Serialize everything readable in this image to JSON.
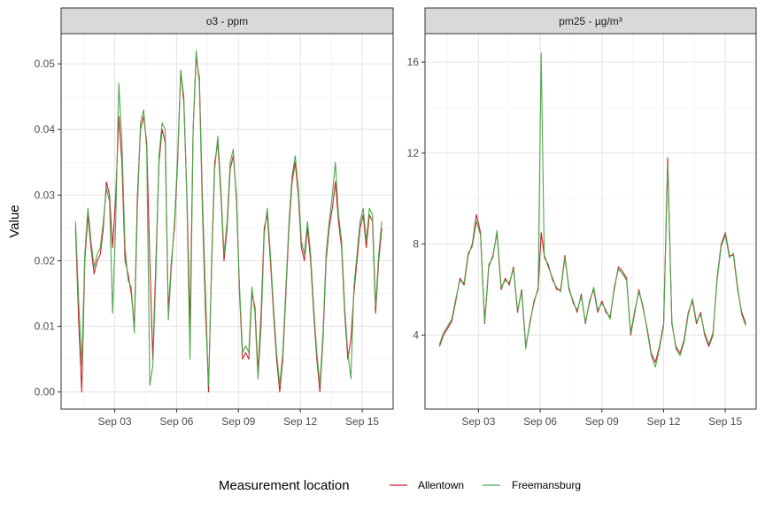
{
  "chart_data": {
    "type": "line",
    "ylabel": "Value",
    "xlabel": "",
    "grid": true,
    "legend": {
      "title": "Measurement location",
      "position": "bottom",
      "entries": [
        {
          "name": "Allentown",
          "color": "#c8232b"
        },
        {
          "name": "Freemansburg",
          "color": "#4da64a"
        }
      ]
    },
    "x_ticks": [
      "Sep 03",
      "Sep 06",
      "Sep 09",
      "Sep 12",
      "Sep 15"
    ],
    "x_tick_days": [
      3,
      6,
      9,
      12,
      15
    ],
    "xlim_days": [
      0.4,
      16.5
    ],
    "panels": [
      {
        "title": "o3 - ppm",
        "ylim": [
          -0.0026,
          0.0546
        ],
        "y_ticks": [
          0.0,
          0.01,
          0.02,
          0.03,
          0.04,
          0.05
        ],
        "y_tick_labels": [
          "0.00",
          "0.01",
          "0.02",
          "0.03",
          "0.04",
          "0.05"
        ],
        "series": [
          {
            "name": "Allentown",
            "x": [
              1.1,
              1.25,
              1.4,
              1.55,
              1.7,
              1.85,
              2.0,
              2.15,
              2.3,
              2.45,
              2.6,
              2.75,
              2.9,
              3.05,
              3.2,
              3.35,
              3.5,
              3.65,
              3.8,
              3.95,
              4.1,
              4.25,
              4.4,
              4.55,
              4.7,
              4.85,
              5.0,
              5.15,
              5.3,
              5.45,
              5.6,
              5.75,
              5.9,
              6.05,
              6.2,
              6.35,
              6.5,
              6.65,
              6.8,
              6.95,
              7.1,
              7.25,
              7.4,
              7.55,
              7.7,
              7.85,
              8.0,
              8.15,
              8.3,
              8.45,
              8.6,
              8.75,
              8.9,
              9.05,
              9.2,
              9.35,
              9.5,
              9.65,
              9.8,
              9.95,
              10.1,
              10.25,
              10.4,
              10.55,
              10.7,
              10.85,
              11.0,
              11.15,
              11.3,
              11.45,
              11.6,
              11.75,
              11.9,
              12.05,
              12.2,
              12.35,
              12.5,
              12.65,
              12.8,
              12.95,
              13.1,
              13.25,
              13.4,
              13.55,
              13.7,
              13.85,
              14.0,
              14.15,
              14.3,
              14.45,
              14.6,
              14.75,
              14.9,
              15.05,
              15.2,
              15.35,
              15.5,
              15.65,
              15.8,
              15.95
            ],
            "y": [
              0.025,
              0.011,
              0.0,
              0.02,
              0.027,
              0.022,
              0.018,
              0.02,
              0.021,
              0.025,
              0.032,
              0.03,
              0.022,
              0.03,
              0.042,
              0.035,
              0.02,
              0.018,
              0.015,
              0.01,
              0.03,
              0.04,
              0.042,
              0.038,
              0.02,
              0.005,
              0.02,
              0.035,
              0.04,
              0.038,
              0.012,
              0.02,
              0.025,
              0.035,
              0.049,
              0.044,
              0.03,
              0.01,
              0.04,
              0.051,
              0.048,
              0.03,
              0.015,
              0.0,
              0.02,
              0.035,
              0.038,
              0.03,
              0.02,
              0.025,
              0.034,
              0.036,
              0.03,
              0.015,
              0.005,
              0.006,
              0.005,
              0.015,
              0.013,
              0.003,
              0.012,
              0.025,
              0.027,
              0.02,
              0.012,
              0.005,
              0.0,
              0.005,
              0.015,
              0.025,
              0.032,
              0.035,
              0.03,
              0.022,
              0.02,
              0.025,
              0.02,
              0.012,
              0.005,
              0.0,
              0.008,
              0.02,
              0.025,
              0.028,
              0.032,
              0.026,
              0.022,
              0.012,
              0.005,
              0.008,
              0.015,
              0.02,
              0.025,
              0.027,
              0.022,
              0.027,
              0.026,
              0.012,
              0.02,
              0.025
            ]
          },
          {
            "name": "Freemansburg",
            "x": [
              1.1,
              1.25,
              1.4,
              1.55,
              1.7,
              1.85,
              2.0,
              2.15,
              2.3,
              2.45,
              2.6,
              2.75,
              2.9,
              3.05,
              3.2,
              3.35,
              3.5,
              3.65,
              3.8,
              3.95,
              4.1,
              4.25,
              4.4,
              4.55,
              4.7,
              4.85,
              5.0,
              5.15,
              5.3,
              5.45,
              5.6,
              5.75,
              5.9,
              6.05,
              6.2,
              6.35,
              6.5,
              6.65,
              6.8,
              6.95,
              7.1,
              7.25,
              7.4,
              7.55,
              7.7,
              7.85,
              8.0,
              8.15,
              8.3,
              8.45,
              8.6,
              8.75,
              8.9,
              9.05,
              9.2,
              9.35,
              9.5,
              9.65,
              9.8,
              9.95,
              10.1,
              10.25,
              10.4,
              10.55,
              10.7,
              10.85,
              11.0,
              11.15,
              11.3,
              11.45,
              11.6,
              11.75,
              11.9,
              12.05,
              12.2,
              12.35,
              12.5,
              12.65,
              12.8,
              12.95,
              13.1,
              13.25,
              13.4,
              13.55,
              13.7,
              13.85,
              14.0,
              14.15,
              14.3,
              14.45,
              14.6,
              14.75,
              14.9,
              15.05,
              15.2,
              15.35,
              15.5,
              15.65,
              15.8,
              15.95
            ],
            "y": [
              0.026,
              0.014,
              0.004,
              0.021,
              0.028,
              0.023,
              0.019,
              0.021,
              0.022,
              0.026,
              0.031,
              0.029,
              0.012,
              0.026,
              0.047,
              0.038,
              0.022,
              0.017,
              0.016,
              0.009,
              0.028,
              0.041,
              0.043,
              0.037,
              0.001,
              0.004,
              0.018,
              0.036,
              0.041,
              0.04,
              0.011,
              0.019,
              0.026,
              0.036,
              0.049,
              0.045,
              0.029,
              0.005,
              0.04,
              0.052,
              0.047,
              0.028,
              0.012,
              0.001,
              0.019,
              0.034,
              0.039,
              0.031,
              0.021,
              0.026,
              0.035,
              0.037,
              0.029,
              0.016,
              0.006,
              0.007,
              0.006,
              0.016,
              0.012,
              0.002,
              0.01,
              0.024,
              0.028,
              0.021,
              0.013,
              0.006,
              0.001,
              0.006,
              0.016,
              0.026,
              0.033,
              0.036,
              0.031,
              0.023,
              0.021,
              0.026,
              0.021,
              0.013,
              0.006,
              0.001,
              0.009,
              0.021,
              0.026,
              0.03,
              0.035,
              0.027,
              0.023,
              0.013,
              0.006,
              0.002,
              0.016,
              0.021,
              0.026,
              0.028,
              0.023,
              0.028,
              0.027,
              0.013,
              0.021,
              0.026
            ]
          }
        ]
      },
      {
        "title": "pm25 - µg/m³",
        "ylim": [
          0.75,
          17.25
        ],
        "y_ticks": [
          4,
          8,
          12,
          16
        ],
        "y_tick_labels": [
          "4",
          "8",
          "12",
          "16"
        ],
        "series": [
          {
            "name": "Allentown",
            "x": [
              1.1,
              1.3,
              1.5,
              1.7,
              1.9,
              2.1,
              2.3,
              2.5,
              2.7,
              2.9,
              3.1,
              3.3,
              3.5,
              3.7,
              3.9,
              4.1,
              4.3,
              4.5,
              4.7,
              4.9,
              5.1,
              5.3,
              5.5,
              5.7,
              5.9,
              6.05,
              6.2,
              6.4,
              6.6,
              6.8,
              7.0,
              7.2,
              7.4,
              7.6,
              7.8,
              8.0,
              8.2,
              8.4,
              8.6,
              8.8,
              9.0,
              9.2,
              9.4,
              9.6,
              9.8,
              10.0,
              10.2,
              10.4,
              10.6,
              10.8,
              11.0,
              11.2,
              11.4,
              11.6,
              11.8,
              12.0,
              12.2,
              12.4,
              12.6,
              12.8,
              13.0,
              13.2,
              13.4,
              13.6,
              13.8,
              14.0,
              14.2,
              14.4,
              14.6,
              14.8,
              15.0,
              15.2,
              15.4,
              15.6,
              15.8,
              16.0
            ],
            "y": [
              3.5,
              4.0,
              4.3,
              4.6,
              5.5,
              6.5,
              6.2,
              7.5,
              8.0,
              9.3,
              8.5,
              4.5,
              7.0,
              7.5,
              8.5,
              6.0,
              6.5,
              6.2,
              7.0,
              5.0,
              6.0,
              3.5,
              4.5,
              5.5,
              6.0,
              8.5,
              7.5,
              7.0,
              6.5,
              6.0,
              6.0,
              7.5,
              6.0,
              5.5,
              5.0,
              5.8,
              4.5,
              5.5,
              6.0,
              5.0,
              5.5,
              5.0,
              4.8,
              6.0,
              7.0,
              6.8,
              6.5,
              4.0,
              5.0,
              6.0,
              5.2,
              4.3,
              3.2,
              2.8,
              3.5,
              4.5,
              11.8,
              4.5,
              3.5,
              3.2,
              3.8,
              5.0,
              5.5,
              4.5,
              5.0,
              4.0,
              3.5,
              4.0,
              6.5,
              8.0,
              8.5,
              7.5,
              7.5,
              6.0,
              5.0,
              4.5
            ]
          },
          {
            "name": "Freemansburg",
            "x": [
              1.1,
              1.3,
              1.5,
              1.7,
              1.9,
              2.1,
              2.3,
              2.5,
              2.7,
              2.9,
              3.1,
              3.3,
              3.5,
              3.7,
              3.9,
              4.1,
              4.3,
              4.5,
              4.7,
              4.9,
              5.1,
              5.3,
              5.5,
              5.7,
              5.9,
              6.05,
              6.2,
              6.4,
              6.6,
              6.8,
              7.0,
              7.2,
              7.4,
              7.6,
              7.8,
              8.0,
              8.2,
              8.4,
              8.6,
              8.8,
              9.0,
              9.2,
              9.4,
              9.6,
              9.8,
              10.0,
              10.2,
              10.4,
              10.6,
              10.8,
              11.0,
              11.2,
              11.4,
              11.6,
              11.8,
              12.0,
              12.2,
              12.4,
              12.6,
              12.8,
              13.0,
              13.2,
              13.4,
              13.6,
              13.8,
              14.0,
              14.2,
              14.4,
              14.6,
              14.8,
              15.0,
              15.2,
              15.4,
              15.6,
              15.8,
              16.0
            ],
            "y": [
              3.6,
              4.1,
              4.4,
              4.7,
              5.6,
              6.4,
              6.3,
              7.6,
              7.9,
              9.0,
              8.4,
              4.6,
              7.1,
              7.4,
              8.6,
              6.1,
              6.4,
              6.3,
              6.9,
              5.1,
              5.9,
              3.4,
              4.6,
              5.4,
              6.1,
              16.4,
              7.4,
              7.1,
              6.4,
              6.1,
              5.9,
              7.4,
              6.1,
              5.4,
              5.1,
              5.7,
              4.6,
              5.4,
              6.1,
              5.1,
              5.4,
              5.1,
              4.7,
              6.1,
              6.9,
              6.7,
              6.4,
              4.1,
              5.1,
              5.9,
              5.3,
              4.2,
              3.1,
              2.6,
              3.4,
              4.4,
              11.5,
              4.6,
              3.4,
              3.1,
              3.7,
              4.9,
              5.6,
              4.6,
              4.9,
              4.1,
              3.6,
              4.1,
              6.4,
              7.9,
              8.4,
              7.4,
              7.6,
              6.1,
              4.9,
              4.4
            ]
          }
        ]
      }
    ]
  }
}
